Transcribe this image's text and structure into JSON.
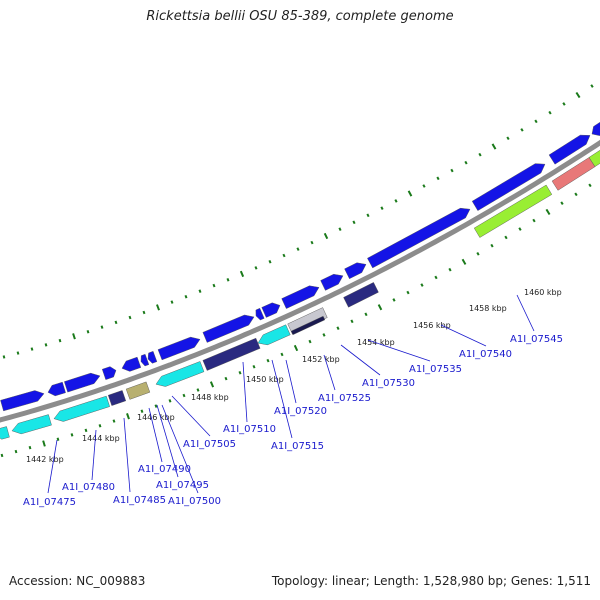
{
  "title": "Rickettsia bellii OSU 85-389, complete genome",
  "footer": {
    "accession": "Accession: NC_009883",
    "summary": "Topology: linear; Length: 1,528,980 bp; Genes: 1,511"
  },
  "colors": {
    "backbone": "#8c8c8c",
    "cds_forward": "#1414e6",
    "cds_reverse": "#19e6e6",
    "cds_dark": "#2a2a80",
    "cds_olive": "#b8b070",
    "cds_green": "#99ee33",
    "cds_pink": "#e87878",
    "ticks": "#1a7a1a",
    "labels": "#1a1acd"
  },
  "scale_labels": [
    "1442 kbp",
    "1444 kbp",
    "1446 kbp",
    "1448 kbp",
    "1450 kbp",
    "1452 kbp",
    "1454 kbp",
    "1456 kbp",
    "1458 kbp",
    "1460 kbp"
  ],
  "gene_labels": [
    "A1I_07475",
    "A1I_07480",
    "A1I_07485",
    "A1I_07490",
    "A1I_07495",
    "A1I_07500",
    "A1I_07505",
    "A1I_07510",
    "A1I_07515",
    "A1I_07520",
    "A1I_07525",
    "A1I_07530",
    "A1I_07535",
    "A1I_07540",
    "A1I_07545"
  ]
}
